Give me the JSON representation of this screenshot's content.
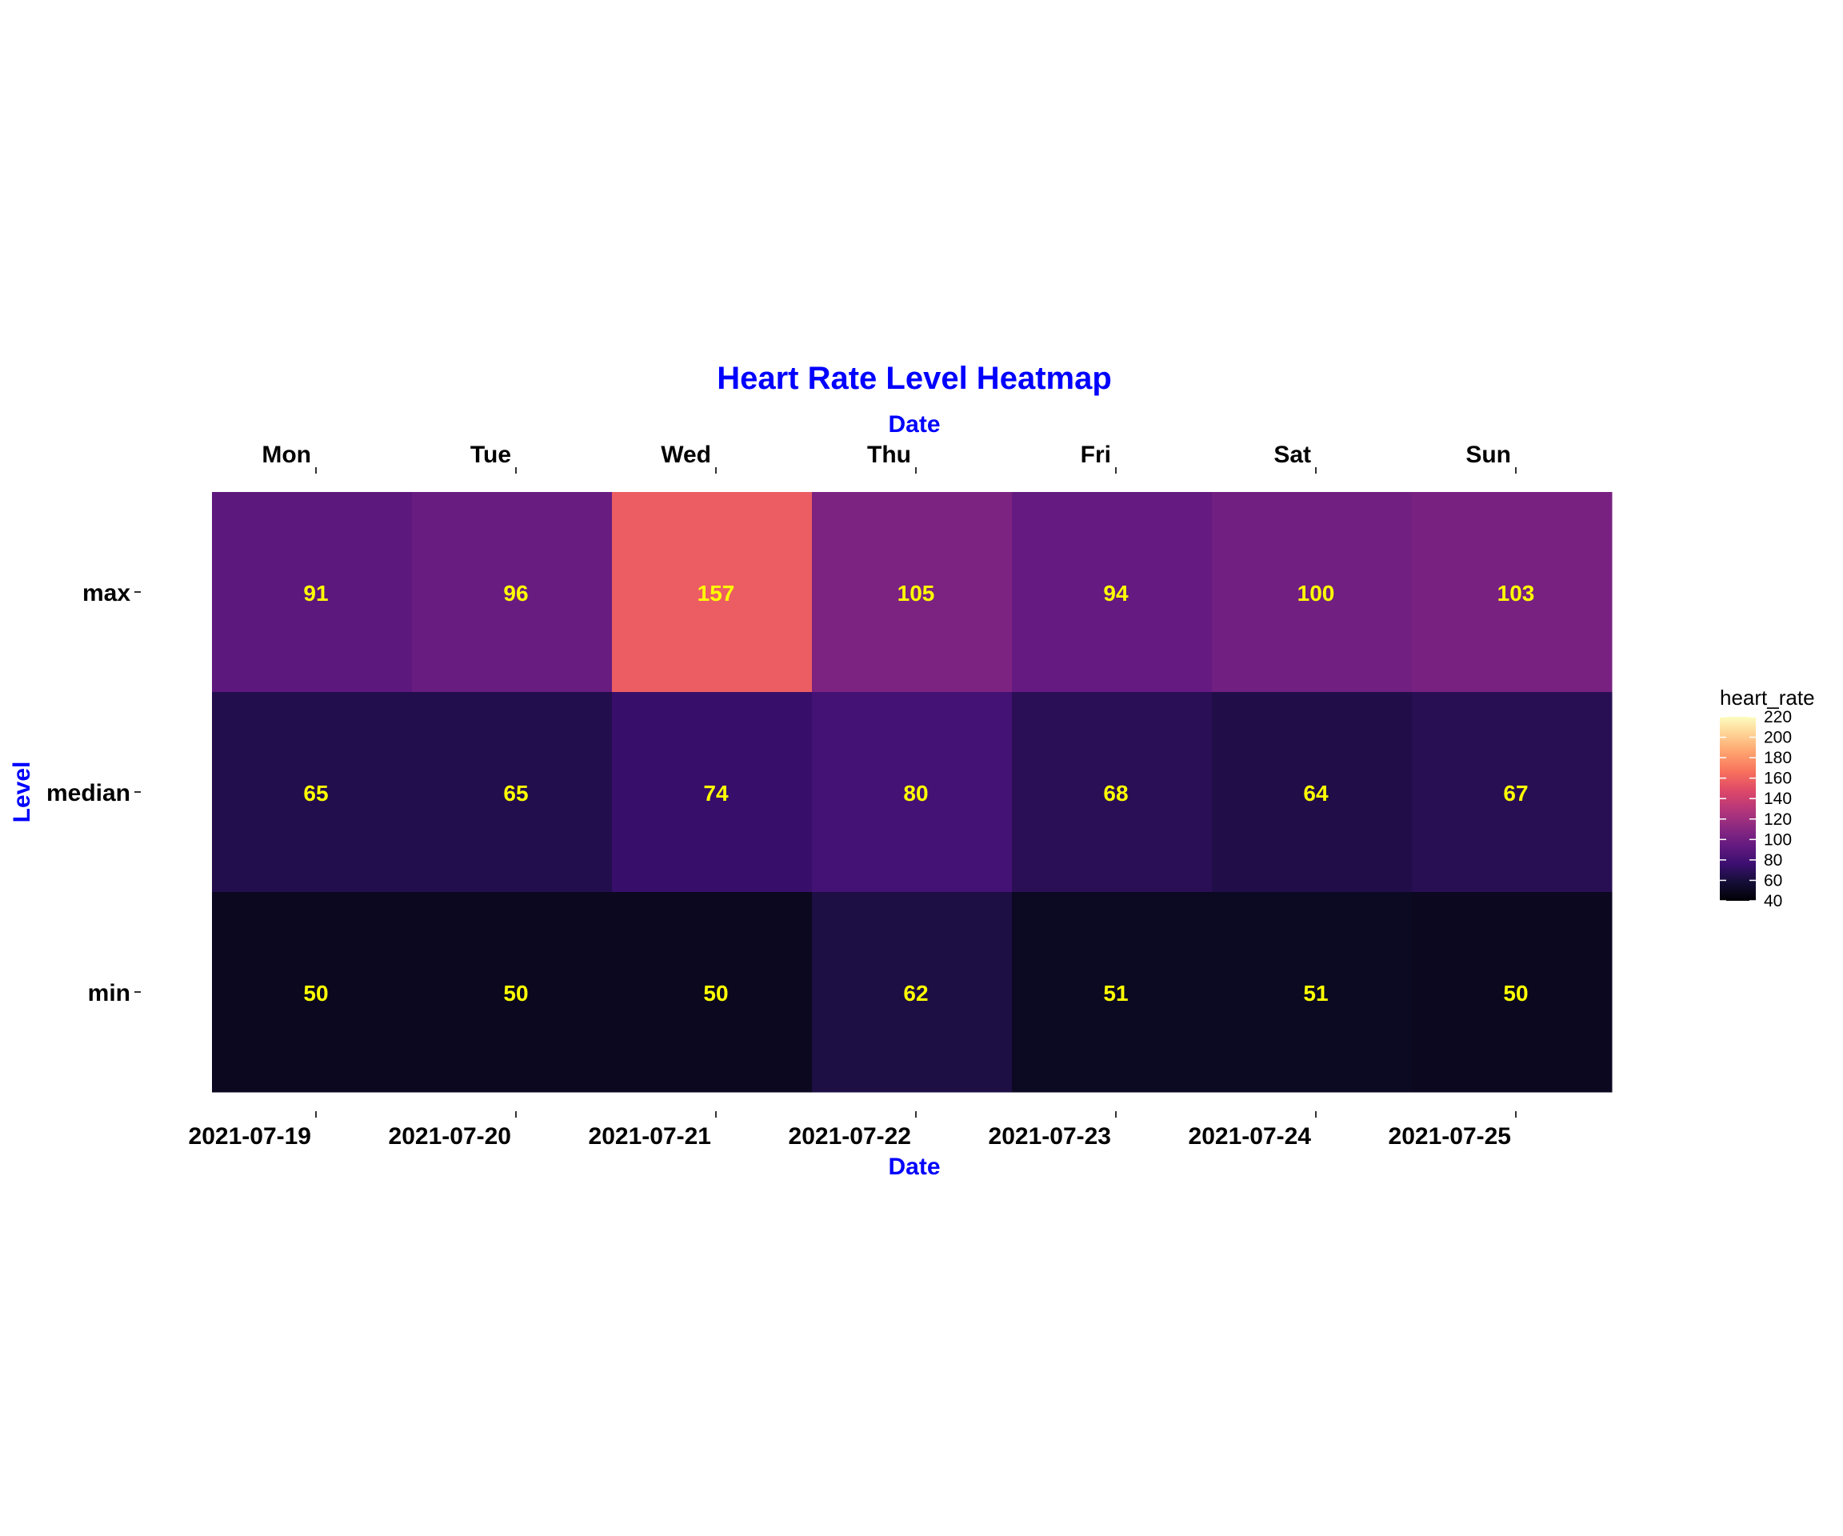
{
  "chart_data": {
    "type": "heatmap",
    "title": "Heart Rate Level Heatmap",
    "xlabel": "Date",
    "xlabel_top": "Date",
    "ylabel": "Level",
    "x_categories": [
      "2021-07-19",
      "2021-07-20",
      "2021-07-21",
      "2021-07-22",
      "2021-07-23",
      "2021-07-24",
      "2021-07-25"
    ],
    "x_top_categories": [
      "Mon",
      "Tue",
      "Wed",
      "Thu",
      "Fri",
      "Sat",
      "Sun"
    ],
    "y_categories": [
      "max",
      "median",
      "min"
    ],
    "values": [
      [
        91,
        96,
        157,
        105,
        94,
        100,
        103
      ],
      [
        65,
        65,
        74,
        80,
        68,
        64,
        67
      ],
      [
        50,
        50,
        50,
        62,
        51,
        51,
        50
      ]
    ],
    "colorbar": {
      "title": "heart_rate",
      "range": [
        40,
        220
      ],
      "ticks": [
        40,
        60,
        80,
        100,
        120,
        140,
        160,
        180,
        200,
        220
      ],
      "colorscale": "magma"
    },
    "legend_position": "right"
  },
  "colors": {
    "title": "#0000FF",
    "axis_title": "#0000FF",
    "cell_text": "#FFFF00",
    "tick_text": "#000000"
  }
}
